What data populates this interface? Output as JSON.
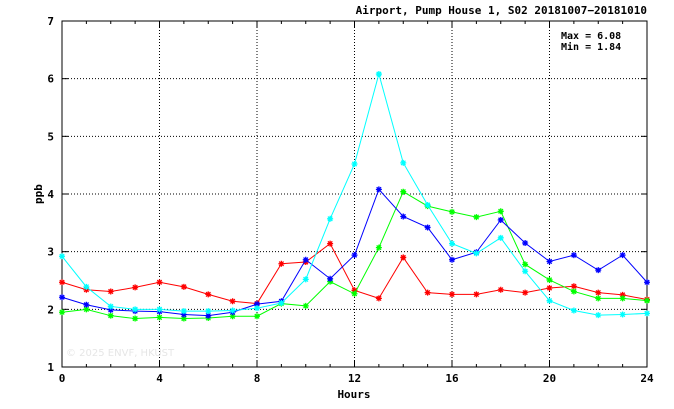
{
  "chart_data": {
    "type": "line",
    "title": "Airport, Pump House 1, S02 20181007−20181010",
    "xlabel": "Hours",
    "ylabel": "ppb",
    "xlim": [
      0,
      24
    ],
    "ylim": [
      1,
      7
    ],
    "xticks": [
      "0",
      "4",
      "8",
      "12",
      "16",
      "20",
      "24"
    ],
    "xtick_values": [
      0,
      4,
      8,
      12,
      16,
      20,
      24
    ],
    "yticks": [
      "1",
      "2",
      "3",
      "4",
      "5",
      "6",
      "7"
    ],
    "ytick_values": [
      1,
      2,
      3,
      4,
      5,
      6,
      7
    ],
    "grid": true,
    "stats": {
      "max": "Max = 6.08",
      "min": "Min = 1.84"
    },
    "watermark": "© 2025  ENVF, HKUST",
    "x": [
      0,
      1,
      2,
      3,
      4,
      5,
      6,
      7,
      8,
      9,
      10,
      11,
      12,
      13,
      14,
      15,
      16,
      17,
      18,
      19,
      20,
      21,
      22,
      23,
      24
    ],
    "series": [
      {
        "color": "#ff0000",
        "values": [
          2.47,
          2.34,
          2.31,
          2.38,
          2.47,
          2.39,
          2.26,
          2.14,
          2.1,
          2.79,
          2.82,
          3.14,
          2.33,
          2.19,
          2.9,
          2.29,
          2.26,
          2.26,
          2.34,
          2.29,
          2.37,
          2.4,
          2.29,
          2.25,
          2.17
        ]
      },
      {
        "color": "#00ff00",
        "values": [
          1.95,
          2.0,
          1.89,
          1.84,
          1.86,
          1.84,
          1.85,
          1.88,
          1.88,
          2.1,
          2.06,
          2.48,
          2.27,
          3.07,
          4.04,
          3.79,
          3.69,
          3.6,
          3.7,
          2.78,
          2.51,
          2.31,
          2.19,
          2.19,
          2.15
        ]
      },
      {
        "color": "#0000ff",
        "values": [
          2.21,
          2.08,
          1.99,
          1.97,
          1.96,
          1.91,
          1.89,
          1.95,
          2.09,
          2.14,
          2.86,
          2.53,
          2.94,
          4.08,
          3.61,
          3.42,
          2.86,
          2.99,
          3.55,
          3.15,
          2.83,
          2.94,
          2.68,
          2.94,
          2.47
        ]
      },
      {
        "color": "#00ffff",
        "values": [
          2.92,
          2.39,
          2.05,
          2.0,
          2.0,
          1.97,
          1.97,
          1.98,
          2.02,
          2.11,
          2.52,
          3.57,
          4.52,
          6.08,
          4.54,
          3.81,
          3.14,
          2.97,
          3.24,
          2.66,
          2.15,
          1.98,
          1.9,
          1.91,
          1.93
        ]
      }
    ]
  }
}
